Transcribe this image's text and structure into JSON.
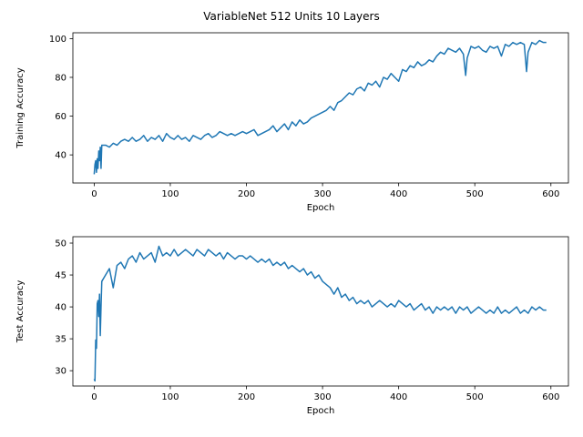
{
  "figure_title": "VariableNet 512 Units 10 Layers",
  "colors": {
    "line": "#1f77b4",
    "axes": "#000000"
  },
  "chart_data": [
    {
      "type": "line",
      "title": "",
      "xlabel": "Epoch",
      "ylabel": "Training Accuracy",
      "xlim": [
        -28,
        623
      ],
      "ylim": [
        25.5,
        103
      ],
      "xticks": [
        0,
        100,
        200,
        300,
        400,
        500,
        600
      ],
      "yticks": [
        40,
        60,
        80,
        100
      ],
      "grid": false,
      "legend": "none",
      "series": [
        {
          "x": [
            0,
            1,
            2,
            3,
            4,
            5,
            6,
            7,
            8,
            9,
            10,
            15,
            20,
            25,
            30,
            35,
            40,
            45,
            50,
            55,
            60,
            65,
            70,
            75,
            80,
            85,
            90,
            95,
            100,
            105,
            110,
            115,
            120,
            125,
            130,
            135,
            140,
            145,
            150,
            155,
            160,
            165,
            170,
            175,
            180,
            185,
            190,
            195,
            200,
            205,
            210,
            215,
            220,
            225,
            230,
            235,
            240,
            245,
            250,
            255,
            260,
            265,
            270,
            275,
            280,
            285,
            290,
            295,
            300,
            305,
            310,
            315,
            320,
            325,
            330,
            335,
            340,
            345,
            350,
            355,
            360,
            365,
            370,
            375,
            380,
            385,
            390,
            395,
            400,
            405,
            410,
            415,
            420,
            425,
            430,
            435,
            440,
            445,
            450,
            455,
            460,
            465,
            470,
            475,
            480,
            485,
            488,
            490,
            495,
            500,
            505,
            510,
            515,
            520,
            525,
            530,
            535,
            540,
            545,
            550,
            555,
            560,
            565,
            568,
            570,
            575,
            580,
            585,
            590,
            594
          ],
          "y": [
            30,
            35,
            37,
            31,
            38,
            33,
            42,
            37,
            44,
            33,
            45,
            45,
            44,
            46,
            45,
            47,
            48,
            47,
            49,
            47,
            48,
            50,
            47,
            49,
            48,
            50,
            47,
            51,
            49,
            48,
            50,
            48,
            49,
            47,
            50,
            49,
            48,
            50,
            51,
            49,
            50,
            52,
            51,
            50,
            51,
            50,
            51,
            52,
            51,
            52,
            53,
            50,
            51,
            52,
            53,
            55,
            52,
            54,
            56,
            53,
            57,
            55,
            58,
            56,
            57,
            59,
            60,
            61,
            62,
            63,
            65,
            63,
            67,
            68,
            70,
            72,
            71,
            74,
            75,
            73,
            77,
            76,
            78,
            75,
            80,
            79,
            82,
            80,
            78,
            84,
            83,
            86,
            85,
            88,
            86,
            87,
            89,
            88,
            91,
            93,
            92,
            95,
            94,
            93,
            95,
            92,
            81,
            90,
            96,
            95,
            96,
            94,
            93,
            96,
            95,
            96,
            91,
            97,
            96,
            98,
            97,
            98,
            97,
            83,
            93,
            98,
            97,
            99,
            98,
            98
          ]
        }
      ]
    },
    {
      "type": "line",
      "title": "",
      "xlabel": "Epoch",
      "ylabel": "Test Accuracy",
      "xlim": [
        -28,
        623
      ],
      "ylim": [
        27.6,
        51
      ],
      "xticks": [
        0,
        100,
        200,
        300,
        400,
        500,
        600
      ],
      "yticks": [
        30,
        35,
        40,
        45,
        50
      ],
      "grid": false,
      "legend": "none",
      "series": [
        {
          "x": [
            0,
            1,
            2,
            3,
            4,
            5,
            6,
            7,
            8,
            9,
            10,
            15,
            20,
            25,
            30,
            35,
            40,
            45,
            50,
            55,
            60,
            65,
            70,
            75,
            80,
            85,
            90,
            95,
            100,
            105,
            110,
            115,
            120,
            125,
            130,
            135,
            140,
            145,
            150,
            155,
            160,
            165,
            170,
            175,
            180,
            185,
            190,
            195,
            200,
            205,
            210,
            215,
            220,
            225,
            230,
            235,
            240,
            245,
            250,
            255,
            260,
            265,
            270,
            275,
            280,
            285,
            290,
            295,
            300,
            305,
            310,
            315,
            320,
            325,
            330,
            335,
            340,
            345,
            350,
            355,
            360,
            365,
            370,
            375,
            380,
            385,
            390,
            395,
            400,
            405,
            410,
            415,
            420,
            425,
            430,
            435,
            440,
            445,
            450,
            455,
            460,
            465,
            470,
            475,
            480,
            485,
            490,
            495,
            500,
            505,
            510,
            515,
            520,
            525,
            530,
            535,
            540,
            545,
            550,
            555,
            560,
            565,
            570,
            575,
            580,
            585,
            590,
            594
          ],
          "y": [
            28.7,
            28.4,
            34.8,
            33.5,
            40.5,
            41.0,
            38.5,
            42.0,
            35.5,
            40.0,
            44.0,
            45.0,
            46.0,
            43.0,
            46.5,
            47.0,
            46.0,
            47.5,
            48.0,
            47.0,
            48.5,
            47.5,
            48.0,
            48.5,
            47.0,
            49.5,
            48.0,
            48.5,
            48.0,
            49.0,
            48.0,
            48.5,
            49.0,
            48.5,
            48.0,
            49.0,
            48.5,
            48.0,
            49.0,
            48.5,
            48.0,
            48.5,
            47.5,
            48.5,
            48.0,
            47.5,
            48.0,
            48.0,
            47.5,
            48.0,
            47.5,
            47.0,
            47.5,
            47.0,
            47.5,
            46.5,
            47.0,
            46.5,
            47.0,
            46.0,
            46.5,
            46.0,
            45.5,
            46.0,
            45.0,
            45.5,
            44.5,
            45.0,
            44.0,
            43.5,
            43.0,
            42.0,
            43.0,
            41.5,
            42.0,
            41.0,
            41.5,
            40.5,
            41.0,
            40.5,
            41.0,
            40.0,
            40.5,
            41.0,
            40.5,
            40.0,
            40.5,
            40.0,
            41.0,
            40.5,
            40.0,
            40.5,
            39.5,
            40.0,
            40.5,
            39.5,
            40.0,
            39.0,
            40.0,
            39.5,
            40.0,
            39.5,
            40.0,
            39.0,
            40.0,
            39.5,
            40.0,
            39.0,
            39.5,
            40.0,
            39.5,
            39.0,
            39.5,
            39.0,
            40.0,
            39.0,
            39.5,
            39.0,
            39.5,
            40.0,
            39.0,
            39.5,
            39.0,
            40.0,
            39.5,
            40.0,
            39.5,
            39.5
          ]
        }
      ]
    }
  ]
}
